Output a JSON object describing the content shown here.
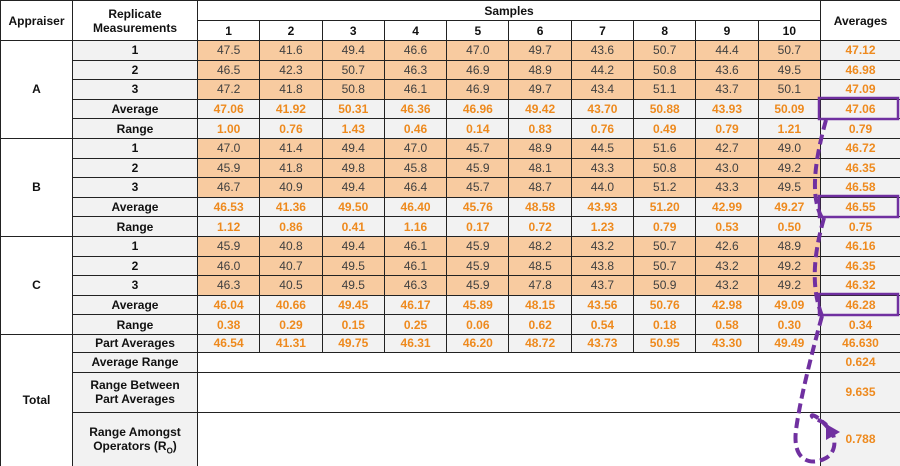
{
  "header": {
    "appraiser": "Appraiser",
    "replicate": "Replicate Measurements",
    "samples": "Samples",
    "sample_numbers": [
      1,
      2,
      3,
      4,
      5,
      6,
      7,
      8,
      9,
      10
    ],
    "averages": "Averages"
  },
  "appraisers": [
    {
      "name": "A",
      "rows": [
        {
          "label": "1",
          "values": [
            "47.5",
            "41.6",
            "49.4",
            "46.6",
            "47.0",
            "49.7",
            "43.6",
            "50.7",
            "44.4",
            "50.7"
          ],
          "average": "47.12"
        },
        {
          "label": "2",
          "values": [
            "46.5",
            "42.3",
            "50.7",
            "46.3",
            "46.9",
            "48.9",
            "44.2",
            "50.8",
            "43.6",
            "49.5"
          ],
          "average": "46.98"
        },
        {
          "label": "3",
          "values": [
            "47.2",
            "41.8",
            "50.8",
            "46.1",
            "46.9",
            "49.7",
            "43.4",
            "51.1",
            "43.7",
            "50.1"
          ],
          "average": "47.09"
        },
        {
          "label": "Average",
          "values": [
            "47.06",
            "41.92",
            "50.31",
            "46.36",
            "46.96",
            "49.42",
            "43.70",
            "50.88",
            "43.93",
            "50.09"
          ],
          "average": "47.06"
        },
        {
          "label": "Range",
          "values": [
            "1.00",
            "0.76",
            "1.43",
            "0.46",
            "0.14",
            "0.83",
            "0.76",
            "0.49",
            "0.79",
            "1.21"
          ],
          "average": "0.79"
        }
      ]
    },
    {
      "name": "B",
      "rows": [
        {
          "label": "1",
          "values": [
            "47.0",
            "41.4",
            "49.4",
            "47.0",
            "45.7",
            "48.9",
            "44.5",
            "51.6",
            "42.7",
            "49.0"
          ],
          "average": "46.72"
        },
        {
          "label": "2",
          "values": [
            "45.9",
            "41.8",
            "49.8",
            "45.8",
            "45.9",
            "48.1",
            "43.3",
            "50.8",
            "43.0",
            "49.2"
          ],
          "average": "46.35"
        },
        {
          "label": "3",
          "values": [
            "46.7",
            "40.9",
            "49.4",
            "46.4",
            "45.7",
            "48.7",
            "44.0",
            "51.2",
            "43.3",
            "49.5"
          ],
          "average": "46.58"
        },
        {
          "label": "Average",
          "values": [
            "46.53",
            "41.36",
            "49.50",
            "46.40",
            "45.76",
            "48.58",
            "43.93",
            "51.20",
            "42.99",
            "49.27"
          ],
          "average": "46.55"
        },
        {
          "label": "Range",
          "values": [
            "1.12",
            "0.86",
            "0.41",
            "1.16",
            "0.17",
            "0.72",
            "1.23",
            "0.79",
            "0.53",
            "0.50"
          ],
          "average": "0.75"
        }
      ]
    },
    {
      "name": "C",
      "rows": [
        {
          "label": "1",
          "values": [
            "45.9",
            "40.8",
            "49.4",
            "46.1",
            "45.9",
            "48.2",
            "43.2",
            "50.7",
            "42.6",
            "48.9"
          ],
          "average": "46.16"
        },
        {
          "label": "2",
          "values": [
            "46.0",
            "40.7",
            "49.5",
            "46.1",
            "45.9",
            "48.5",
            "43.8",
            "50.7",
            "43.2",
            "49.2"
          ],
          "average": "46.35"
        },
        {
          "label": "3",
          "values": [
            "46.3",
            "40.5",
            "49.5",
            "46.3",
            "45.9",
            "47.8",
            "43.7",
            "50.9",
            "43.2",
            "49.2"
          ],
          "average": "46.32"
        },
        {
          "label": "Average",
          "values": [
            "46.04",
            "40.66",
            "49.45",
            "46.17",
            "45.89",
            "48.15",
            "43.56",
            "50.76",
            "42.98",
            "49.09"
          ],
          "average": "46.28"
        },
        {
          "label": "Range",
          "values": [
            "0.38",
            "0.29",
            "0.15",
            "0.25",
            "0.06",
            "0.62",
            "0.54",
            "0.18",
            "0.58",
            "0.30"
          ],
          "average": "0.34"
        }
      ]
    }
  ],
  "total": {
    "label": "Total",
    "part_averages": {
      "label": "Part Averages",
      "values": [
        "46.54",
        "41.31",
        "49.75",
        "46.31",
        "46.20",
        "48.72",
        "43.73",
        "50.95",
        "43.30",
        "49.49"
      ],
      "average": "46.630"
    },
    "average_range": {
      "label": "Average Range",
      "value": "0.624"
    },
    "range_between": {
      "label": "Range Between Part Averages",
      "value": "9.635"
    },
    "range_amongst": {
      "label": "Range Amongst Operators (R",
      "subscript": "O",
      "suffix": ")",
      "value": "0.788"
    }
  }
}
